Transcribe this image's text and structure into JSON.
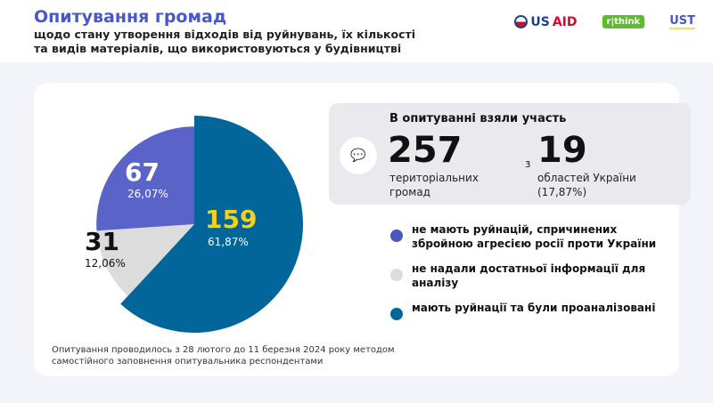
{
  "header": {
    "title": "Опитування громад",
    "subtitle": "щодо стану утворення відходів від руйнувань, їх кількості та видів матеріалів, що використовуються у будівництві",
    "logos": [
      "USAID",
      "think",
      "UST"
    ]
  },
  "stats": {
    "title": "В опитуванні взяли участь",
    "communities_value": "257",
    "communities_label": "територіальних громад",
    "connector": "з",
    "regions_value": "19",
    "regions_label": "областей України (17,87%)",
    "icon": "chat-question-icon"
  },
  "chart_data": {
    "type": "pie",
    "title": "",
    "slices": [
      {
        "name": "мають руйнації та були проаналізовані",
        "value": 159,
        "percent": 61.87,
        "value_label": "159",
        "percent_label": "61,87%",
        "color": "#03669a",
        "label_color": "#f7d117"
      },
      {
        "name": "не надали достатньої інформації для аналізу",
        "value": 31,
        "percent": 12.06,
        "value_label": "31",
        "percent_label": "12,06%",
        "color": "#dcdcdc",
        "label_color": "#111111"
      },
      {
        "name": "не мають руйнацій, спричинених збройною агресією росії проти України",
        "value": 67,
        "percent": 26.07,
        "value_label": "67",
        "percent_label": "26,07%",
        "color": "#5a64c8",
        "label_color": "#ffffff"
      }
    ],
    "legend_placement": "right"
  },
  "legend": [
    {
      "label": "не мають руйнацій, спричинених збройною агресією росії проти України",
      "color": "#4a56c2"
    },
    {
      "label": "не надали достатньої інформації для аналізу",
      "color": "#dcdcdc"
    },
    {
      "label": "мають руйнації та були проаналізовані",
      "color": "#03669a"
    }
  ],
  "note": "Опитування проводилось з 28 лютого до 11 березня 2024 року методом самостійного заповнення опитувальника респондентами"
}
